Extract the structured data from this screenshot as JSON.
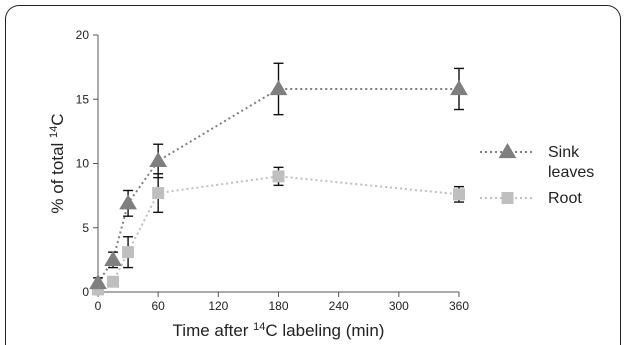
{
  "chart_data": {
    "type": "line",
    "title": "",
    "xlabel": {
      "prefix": "Time after ",
      "sup": "14",
      "suffix": "C labeling (min)"
    },
    "ylabel": {
      "prefix": "% of total ",
      "sup": "14",
      "suffix": "C"
    },
    "xlim": [
      0,
      360
    ],
    "ylim": [
      0,
      20
    ],
    "x_ticks": [
      0,
      60,
      120,
      180,
      240,
      300,
      360
    ],
    "y_ticks": [
      0,
      5,
      10,
      15,
      20
    ],
    "grid": false,
    "legend_position": "right",
    "series": [
      {
        "name": "Sink leaves",
        "name_lines": [
          "Sink",
          "leaves"
        ],
        "marker": "triangle",
        "color": "#7f7f7f",
        "x": [
          0,
          15,
          30,
          60,
          180,
          360
        ],
        "y": [
          0.7,
          2.5,
          6.9,
          10.2,
          15.8,
          15.8
        ],
        "err": [
          0.4,
          0.6,
          1.0,
          1.3,
          2.0,
          1.6
        ]
      },
      {
        "name": "Root",
        "name_lines": [
          "Root"
        ],
        "marker": "square",
        "color": "#bfbfbf",
        "x": [
          0,
          15,
          30,
          60,
          180,
          360
        ],
        "y": [
          0.2,
          0.8,
          3.1,
          7.7,
          9.0,
          7.6
        ],
        "err": [
          0.2,
          0.3,
          1.2,
          1.5,
          0.7,
          0.6
        ]
      }
    ]
  }
}
